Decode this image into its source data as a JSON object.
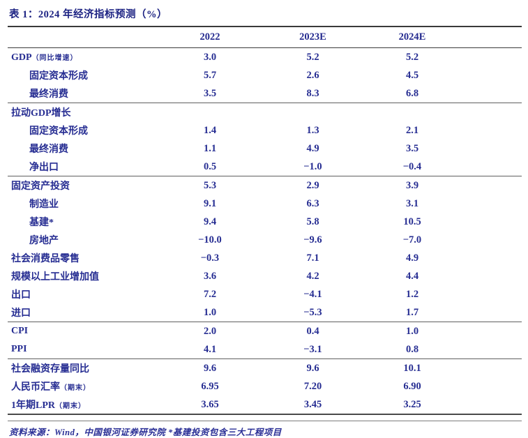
{
  "title": "表 1：2024 年经济指标预测（%）",
  "colors": {
    "text_navy": "#262d92",
    "rule_dark": "#3a3a3a",
    "rule_gray": "#5f5f5f"
  },
  "table": {
    "columns": [
      "2022",
      "2023E",
      "2024E"
    ],
    "rows": [
      {
        "label": "GDP",
        "suffix": "（同比增速）",
        "indent": 0,
        "values": [
          "3.0",
          "5.2",
          "5.2"
        ],
        "sep_after": false
      },
      {
        "label": "固定资本形成",
        "suffix": "",
        "indent": 1,
        "values": [
          "5.7",
          "2.6",
          "4.5"
        ],
        "sep_after": false
      },
      {
        "label": "最终消费",
        "suffix": "",
        "indent": 1,
        "values": [
          "3.5",
          "8.3",
          "6.8"
        ],
        "sep_after": true
      },
      {
        "label": "拉动GDP增长",
        "suffix": "",
        "indent": 0,
        "values": [
          "",
          "",
          ""
        ],
        "sep_after": false
      },
      {
        "label": "固定资本形成",
        "suffix": "",
        "indent": 1,
        "values": [
          "1.4",
          "1.3",
          "2.1"
        ],
        "sep_after": false
      },
      {
        "label": "最终消费",
        "suffix": "",
        "indent": 1,
        "values": [
          "1.1",
          "4.9",
          "3.5"
        ],
        "sep_after": false
      },
      {
        "label": "净出口",
        "suffix": "",
        "indent": 1,
        "values": [
          "0.5",
          "−1.0",
          "−0.4"
        ],
        "sep_after": true
      },
      {
        "label": "固定资产投资",
        "suffix": "",
        "indent": 0,
        "values": [
          "5.3",
          "2.9",
          "3.9"
        ],
        "sep_after": false
      },
      {
        "label": "制造业",
        "suffix": "",
        "indent": 1,
        "values": [
          "9.1",
          "6.3",
          "3.1"
        ],
        "sep_after": false
      },
      {
        "label": "基建*",
        "suffix": "",
        "indent": 1,
        "values": [
          "9.4",
          "5.8",
          "10.5"
        ],
        "sep_after": false
      },
      {
        "label": "房地产",
        "suffix": "",
        "indent": 1,
        "values": [
          "−10.0",
          "−9.6",
          "−7.0"
        ],
        "sep_after": false
      },
      {
        "label": "社会消费品零售",
        "suffix": "",
        "indent": 0,
        "values": [
          "−0.3",
          "7.1",
          "4.9"
        ],
        "sep_after": false
      },
      {
        "label": "规模以上工业增加值",
        "suffix": "",
        "indent": 0,
        "values": [
          "3.6",
          "4.2",
          "4.4"
        ],
        "sep_after": false
      },
      {
        "label": "出口",
        "suffix": "",
        "indent": 0,
        "values": [
          "7.2",
          "−4.1",
          "1.2"
        ],
        "sep_after": false
      },
      {
        "label": "进口",
        "suffix": "",
        "indent": 0,
        "values": [
          "1.0",
          "−5.3",
          "1.7"
        ],
        "sep_after": true
      },
      {
        "label": "CPI",
        "suffix": "",
        "indent": 0,
        "values": [
          "2.0",
          "0.4",
          "1.0"
        ],
        "sep_after": false
      },
      {
        "label": "PPI",
        "suffix": "",
        "indent": 0,
        "values": [
          "4.1",
          "−3.1",
          "0.8"
        ],
        "sep_after": true
      },
      {
        "label": "社会融资存量同比",
        "suffix": "",
        "indent": 0,
        "values": [
          "9.6",
          "9.6",
          "10.1"
        ],
        "sep_after": false
      },
      {
        "label": "人民币汇率",
        "suffix": "（期末）",
        "indent": 0,
        "values": [
          "6.95",
          "7.20",
          "6.90"
        ],
        "sep_after": false
      },
      {
        "label": "1年期LPR",
        "suffix": "（期末）",
        "indent": 0,
        "values": [
          "3.65",
          "3.45",
          "3.25"
        ],
        "sep_after": false
      }
    ]
  },
  "footer": "资料来源：Wind，中国银河证券研究院 *基建投资包含三大工程项目"
}
